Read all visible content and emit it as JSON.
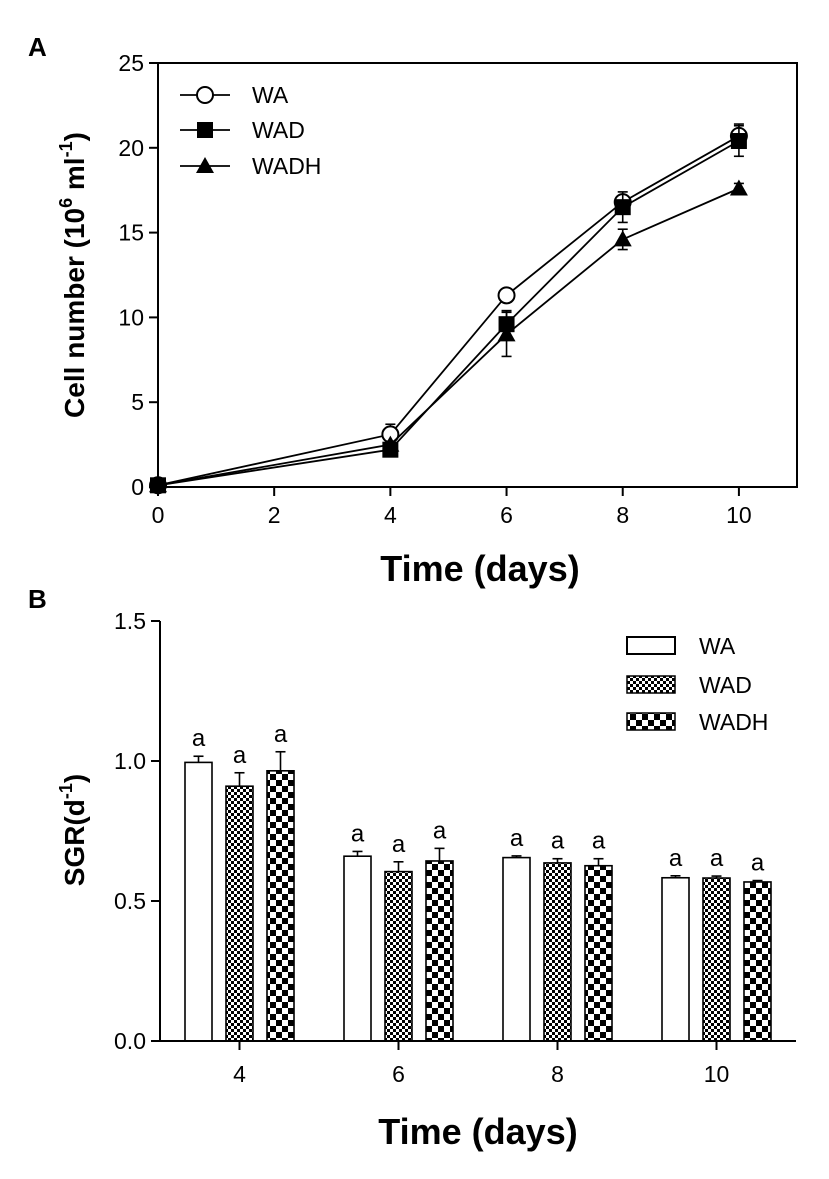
{
  "chart_data": [
    {
      "panel_label": "A",
      "type": "line",
      "xlabel": "Time (days)",
      "ylabel_main": "Cell number (10",
      "ylabel_sup1": "6",
      "ylabel_mid": " ml",
      "ylabel_sup2": "-1",
      "ylabel_end": ")",
      "xlim": [
        0,
        11
      ],
      "ylim": [
        0,
        25
      ],
      "xticks": [
        0,
        2,
        4,
        6,
        8,
        10
      ],
      "yticks": [
        0,
        5,
        10,
        15,
        20,
        25
      ],
      "x": [
        0,
        4,
        6,
        8,
        10
      ],
      "series": [
        {
          "name": "WA",
          "marker": "circle-open",
          "values": [
            0.1,
            3.1,
            11.3,
            16.8,
            20.7
          ],
          "errors": [
            0,
            0.6,
            0,
            0.3,
            0.7
          ]
        },
        {
          "name": "WAD",
          "marker": "square-filled",
          "values": [
            0.1,
            2.2,
            9.6,
            16.5,
            20.4
          ],
          "errors": [
            0,
            0.3,
            0.8,
            0.9,
            0.9
          ]
        },
        {
          "name": "WADH",
          "marker": "triangle-filled",
          "values": [
            0.1,
            2.5,
            9.0,
            14.6,
            17.6
          ],
          "errors": [
            0,
            0.2,
            1.3,
            0.6,
            0.3
          ]
        }
      ],
      "legend_position": "top-left"
    },
    {
      "panel_label": "B",
      "type": "bar",
      "xlabel": "Time (days)",
      "ylabel_main": "SGR(d",
      "ylabel_sup": "-1",
      "ylabel_end": ")",
      "ylim": [
        0,
        1.5
      ],
      "yticks": [
        "0.0",
        "0.5",
        "1.0",
        "1.5"
      ],
      "categories": [
        "4",
        "6",
        "8",
        "10"
      ],
      "series": [
        {
          "name": "WA",
          "pattern": "open",
          "values": [
            0.995,
            0.66,
            0.655,
            0.583
          ],
          "errors": [
            0.022,
            0.017,
            0.006,
            0.007
          ],
          "labels": [
            "a",
            "a",
            "a",
            "a"
          ]
        },
        {
          "name": "WAD",
          "pattern": "fine-check",
          "values": [
            0.91,
            0.605,
            0.636,
            0.582
          ],
          "errors": [
            0.048,
            0.035,
            0.015,
            0.007
          ],
          "labels": [
            "a",
            "a",
            "a",
            "a"
          ]
        },
        {
          "name": "WADH",
          "pattern": "coarse-check",
          "values": [
            0.965,
            0.643,
            0.626,
            0.568
          ],
          "errors": [
            0.068,
            0.045,
            0.025,
            0.005
          ],
          "labels": [
            "a",
            "a",
            "a",
            "a"
          ]
        }
      ],
      "legend_position": "top-right"
    }
  ]
}
